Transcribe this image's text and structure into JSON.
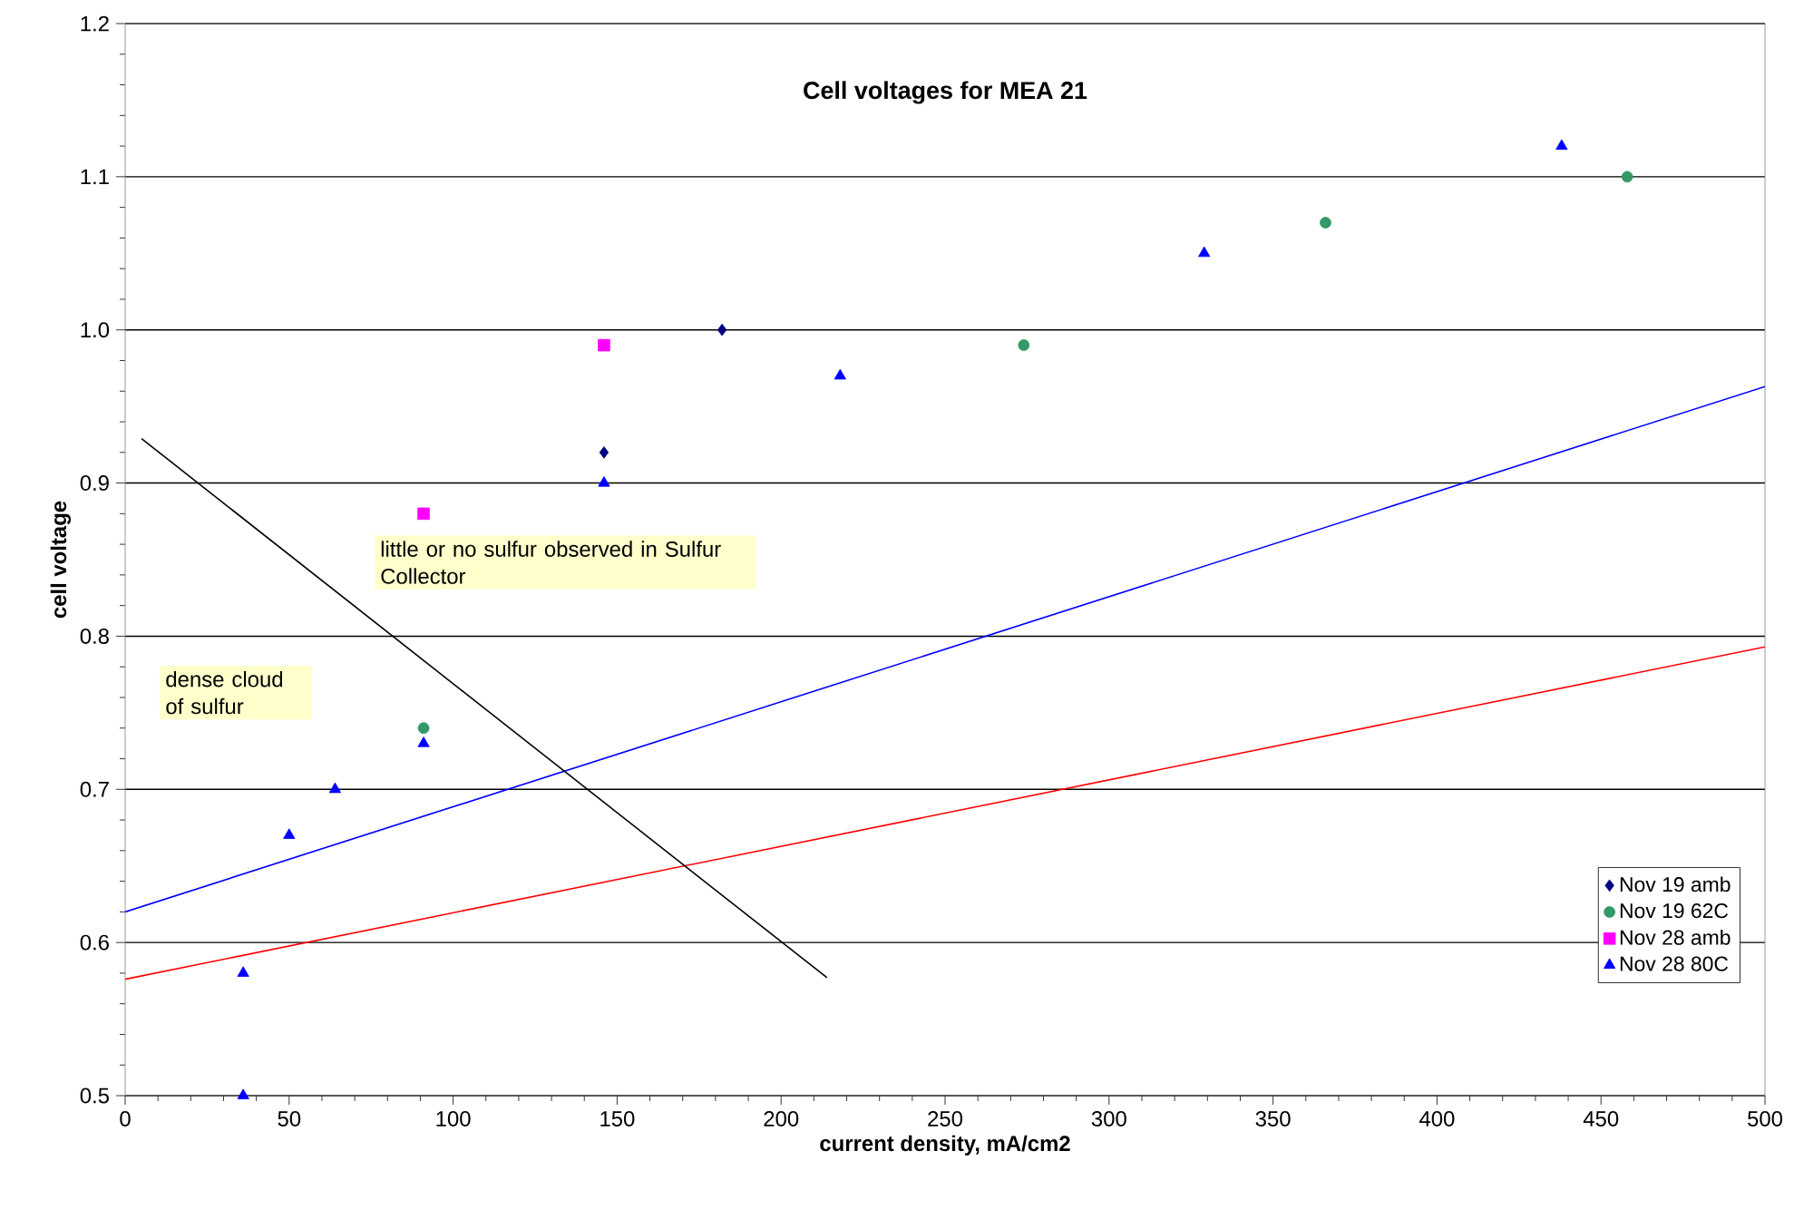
{
  "chart_data": {
    "type": "scatter",
    "title": "Cell voltages for MEA 21",
    "xlabel": "current density, mA/cm2",
    "ylabel": "cell voltage",
    "xlim": [
      0,
      500
    ],
    "ylim": [
      0.5,
      1.2
    ],
    "xticks": [
      0,
      50,
      100,
      150,
      200,
      250,
      300,
      350,
      400,
      450,
      500
    ],
    "yticks": [
      0.5,
      0.6,
      0.7,
      0.8,
      0.9,
      {
        "value": 1.0,
        "label": "1.0"
      },
      1.1,
      1.2
    ],
    "grid": "y",
    "legend": "bottom right",
    "annotations": [
      "dense cloud of sulfur",
      "little or no sulfur observed in Sulfur Collector"
    ],
    "series": [
      {
        "name": "Nov 19 amb",
        "type": "scatter",
        "marker": "diamond",
        "color": "#000080",
        "x": [
          146,
          182
        ],
        "values": [
          0.92,
          1.0
        ]
      },
      {
        "name": "Nov 19 62C",
        "type": "scatter",
        "marker": "circle",
        "color": "#339966",
        "x": [
          91,
          274,
          366,
          458
        ],
        "values": [
          0.74,
          0.99,
          1.07,
          1.1
        ]
      },
      {
        "name": "Nov 28 amb",
        "type": "scatter",
        "marker": "square",
        "color": "#ff00ff",
        "x": [
          91,
          146
        ],
        "values": [
          0.88,
          0.99
        ]
      },
      {
        "name": "Nov 28 80C",
        "type": "scatter",
        "marker": "triangle",
        "color": "#0000ff",
        "x": [
          36,
          36,
          50,
          64,
          91,
          146,
          218,
          329,
          438
        ],
        "values": [
          0.5,
          0.58,
          0.67,
          0.7,
          0.73,
          0.9,
          0.97,
          1.05,
          1.12
        ]
      },
      {
        "type": "line",
        "marker": "none",
        "color": "#0000ff",
        "x": [
          0,
          500
        ],
        "values": [
          0.62,
          0.963
        ]
      },
      {
        "type": "line",
        "marker": "none",
        "color": "#ff0000",
        "x": [
          0,
          500
        ],
        "values": [
          0.576,
          0.793
        ]
      },
      {
        "type": "line",
        "marker": "none",
        "color": "#000000",
        "x": [
          5,
          214
        ],
        "values": [
          0.929,
          0.577
        ]
      }
    ]
  }
}
